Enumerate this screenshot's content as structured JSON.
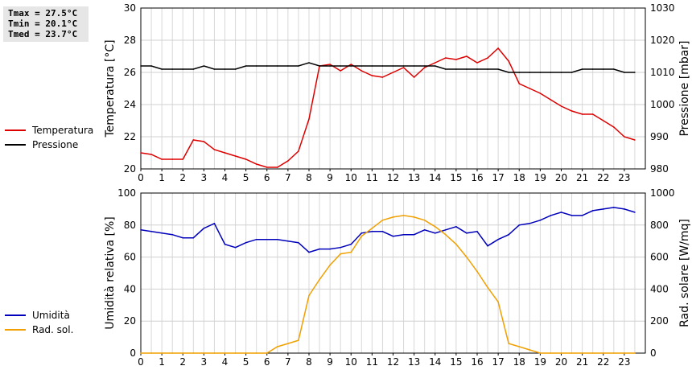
{
  "stats": {
    "tmax": "Tmax = 27.5°C",
    "tmin": "Tmin = 20.1°C",
    "tmed": "Tmed = 23.7°C"
  },
  "legend_top": [
    {
      "label": "Temperatura",
      "color": "#dd0000"
    },
    {
      "label": "Pressione",
      "color": "#000000"
    }
  ],
  "legend_bottom": [
    {
      "label": "Umidità",
      "color": "#0000bb"
    },
    {
      "label": "Rad. sol.",
      "color": "#f0a000"
    }
  ],
  "chart_data": [
    {
      "type": "line",
      "xlim": [
        0,
        24
      ],
      "xticks": [
        "0",
        "1",
        "2",
        "3",
        "4",
        "5",
        "6",
        "7",
        "8",
        "9",
        "10",
        "11",
        "12",
        "13",
        "14",
        "15",
        "16",
        "17",
        "18",
        "19",
        "20",
        "21",
        "22",
        "23"
      ],
      "ylabel": "Temperatura [°C]",
      "ylim": [
        20,
        30
      ],
      "yticks": [
        20,
        22,
        24,
        26,
        28,
        30
      ],
      "y2label": "Pressione [mbar]",
      "y2lim": [
        980,
        1030
      ],
      "y2ticks": [
        980,
        990,
        1000,
        1010,
        1020,
        1030
      ],
      "grid": true,
      "series": [
        {
          "name": "Temperatura",
          "axis": "left",
          "color": "#dd0000",
          "x": [
            0,
            0.5,
            1,
            1.5,
            2,
            2.5,
            3,
            3.5,
            4,
            4.5,
            5,
            5.5,
            6,
            6.5,
            7,
            7.5,
            8,
            8.5,
            9,
            9.5,
            10,
            10.5,
            11,
            11.5,
            12,
            12.5,
            13,
            13.5,
            14,
            14.5,
            15,
            15.5,
            16,
            16.5,
            17,
            17.5,
            18,
            18.5,
            19,
            19.5,
            20,
            20.5,
            21,
            21.5,
            22,
            22.5,
            23,
            23.5
          ],
          "values": [
            21.0,
            20.9,
            20.6,
            20.6,
            20.6,
            21.8,
            21.7,
            21.2,
            21.0,
            20.8,
            20.6,
            20.3,
            20.1,
            20.1,
            20.5,
            21.1,
            23.1,
            26.4,
            26.5,
            26.1,
            26.5,
            26.1,
            25.8,
            25.7,
            26.0,
            26.3,
            25.7,
            26.3,
            26.6,
            26.9,
            26.8,
            27.0,
            26.6,
            26.9,
            27.5,
            26.7,
            25.3,
            25.0,
            24.7,
            24.3,
            23.9,
            23.6,
            23.4,
            23.4,
            23.0,
            22.6,
            22.0,
            21.8
          ]
        },
        {
          "name": "Pressione",
          "axis": "right",
          "color": "#000000",
          "x": [
            0,
            0.5,
            1,
            1.5,
            2,
            2.5,
            3,
            3.5,
            4,
            4.5,
            5,
            5.5,
            6,
            6.5,
            7,
            7.5,
            8,
            8.5,
            9,
            9.5,
            10,
            10.5,
            11,
            11.5,
            12,
            12.5,
            13,
            13.5,
            14,
            14.5,
            15,
            15.5,
            16,
            16.5,
            17,
            17.5,
            18,
            18.5,
            19,
            19.5,
            20,
            20.5,
            21,
            21.5,
            22,
            22.5,
            23,
            23.5
          ],
          "values": [
            1012,
            1012,
            1011,
            1011,
            1011,
            1011,
            1012,
            1011,
            1011,
            1011,
            1012,
            1012,
            1012,
            1012,
            1012,
            1012,
            1013,
            1012,
            1012,
            1012,
            1012,
            1012,
            1012,
            1012,
            1012,
            1012,
            1012,
            1012,
            1012,
            1011,
            1011,
            1011,
            1011,
            1011,
            1011,
            1010,
            1010,
            1010,
            1010,
            1010,
            1010,
            1010,
            1011,
            1011,
            1011,
            1011,
            1010,
            1010
          ]
        }
      ]
    },
    {
      "type": "line",
      "xlim": [
        0,
        24
      ],
      "xticks": [
        "0",
        "1",
        "2",
        "3",
        "4",
        "5",
        "6",
        "7",
        "8",
        "9",
        "10",
        "11",
        "12",
        "13",
        "14",
        "15",
        "16",
        "17",
        "18",
        "19",
        "20",
        "21",
        "22",
        "23"
      ],
      "ylabel": "Umidità relativa [%]",
      "ylim": [
        0,
        100
      ],
      "yticks": [
        0,
        20,
        40,
        60,
        80,
        100
      ],
      "y2label": "Rad. solare [W/mq]",
      "y2lim": [
        0,
        1000
      ],
      "y2ticks": [
        0,
        200,
        400,
        600,
        800,
        1000
      ],
      "grid": true,
      "series": [
        {
          "name": "Umidità",
          "axis": "left",
          "color": "#0000bb",
          "x": [
            0,
            0.5,
            1,
            1.5,
            2,
            2.5,
            3,
            3.5,
            4,
            4.5,
            5,
            5.5,
            6,
            6.5,
            7,
            7.5,
            8,
            8.5,
            9,
            9.5,
            10,
            10.5,
            11,
            11.5,
            12,
            12.5,
            13,
            13.5,
            14,
            14.5,
            15,
            15.5,
            16,
            16.5,
            17,
            17.5,
            18,
            18.5,
            19,
            19.5,
            20,
            20.5,
            21,
            21.5,
            22,
            22.5,
            23,
            23.5
          ],
          "values": [
            77,
            76,
            75,
            74,
            72,
            72,
            78,
            81,
            68,
            66,
            69,
            71,
            71,
            71,
            70,
            69,
            63,
            65,
            65,
            66,
            68,
            75,
            76,
            76,
            73,
            74,
            74,
            77,
            75,
            77,
            79,
            75,
            76,
            67,
            71,
            74,
            80,
            81,
            83,
            86,
            88,
            86,
            86,
            89,
            90,
            91,
            90,
            88
          ]
        },
        {
          "name": "Rad. sol.",
          "axis": "right",
          "color": "#f0a000",
          "x": [
            0,
            0.5,
            1,
            1.5,
            2,
            2.5,
            3,
            3.5,
            4,
            4.5,
            5,
            5.5,
            6,
            6.5,
            7,
            7.5,
            8,
            8.5,
            9,
            9.5,
            10,
            10.5,
            11,
            11.5,
            12,
            12.5,
            13,
            13.5,
            14,
            14.5,
            15,
            15.5,
            16,
            16.5,
            17,
            17.5,
            18,
            18.5,
            19,
            19.5,
            20,
            20.5,
            21,
            21.5,
            22,
            22.5,
            23,
            23.5
          ],
          "values": [
            0,
            0,
            0,
            0,
            0,
            0,
            0,
            0,
            0,
            0,
            0,
            0,
            0,
            40,
            60,
            80,
            360,
            460,
            550,
            620,
            630,
            730,
            780,
            830,
            850,
            860,
            850,
            830,
            790,
            740,
            680,
            600,
            510,
            410,
            320,
            60,
            40,
            20,
            0,
            0,
            0,
            0,
            0,
            0,
            0,
            0,
            0,
            0
          ]
        }
      ]
    }
  ]
}
